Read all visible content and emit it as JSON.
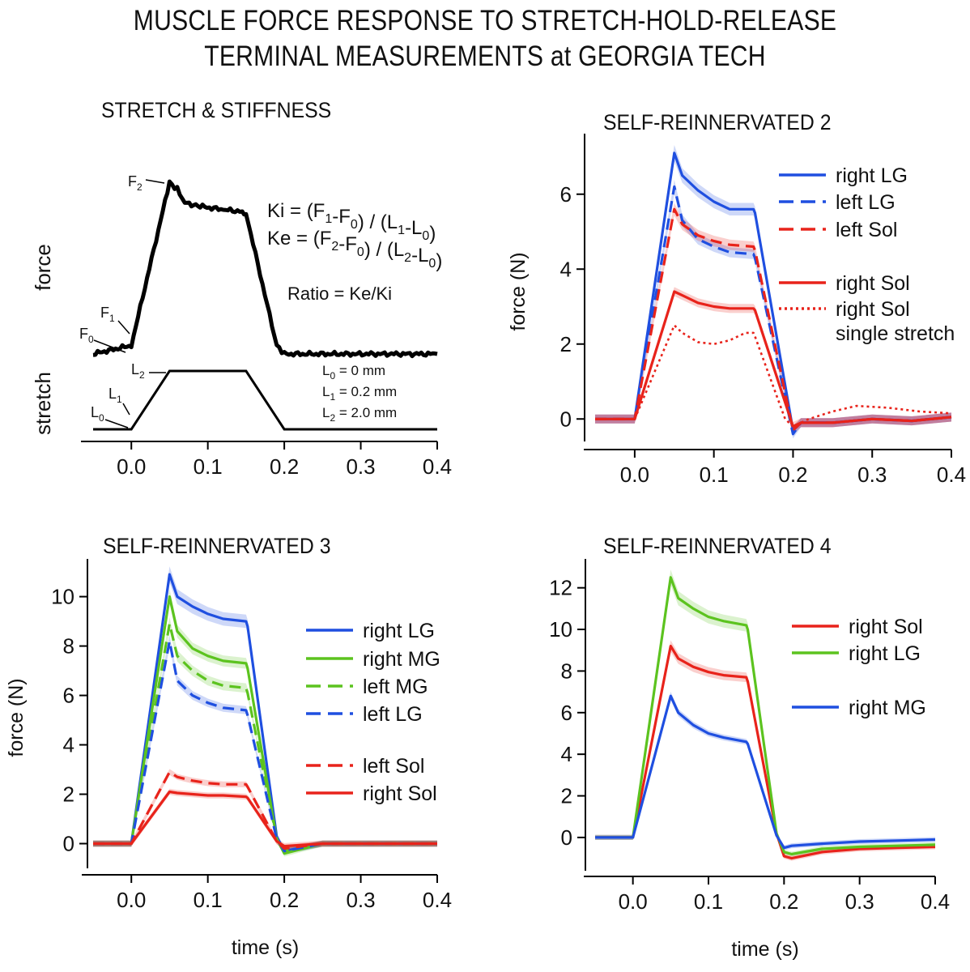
{
  "title_line1": "MUSCLE FORCE RESPONSE TO STRETCH-HOLD-RELEASE",
  "title_line2": "TERMINAL MEASUREMENTS at GEORGIA TECH",
  "colors": {
    "blue": "#1f4fe0",
    "red": "#e8231b",
    "green": "#5cc31f",
    "black": "#000000"
  },
  "chart_data": [
    {
      "type": "line",
      "title": "STRETCH & STIFFNESS",
      "xlabel": "",
      "ylabels": [
        "force",
        "stretch"
      ],
      "xlim": [
        -0.05,
        0.4
      ],
      "xticks": [
        "0.0",
        "0.1",
        "0.2",
        "0.3",
        "0.4"
      ],
      "series": [
        {
          "name": "force",
          "x": [
            -0.05,
            0.0,
            0.05,
            0.06,
            0.07,
            0.09,
            0.12,
            0.145,
            0.15,
            0.19,
            0.2,
            0.4
          ],
          "y": [
            0.0,
            0.05,
            1.0,
            0.96,
            0.88,
            0.86,
            0.84,
            0.83,
            0.82,
            0.05,
            0.0,
            0.0
          ]
        },
        {
          "name": "stretch",
          "x": [
            -0.05,
            0.0,
            0.05,
            0.15,
            0.2,
            0.4
          ],
          "y": [
            0,
            0,
            2.0,
            2.0,
            0,
            0
          ]
        }
      ],
      "annotations": {
        "point_labels": [
          "F2",
          "F1",
          "F0",
          "L2",
          "L1",
          "L0"
        ],
        "equations": [
          "Ki = (F1-F0) / (L1-L0)",
          "Ke = (F2-F0) / (L2-L0)",
          "Ratio = Ke/Ki"
        ],
        "lengths": [
          "L0 = 0 mm",
          "L1 = 0.2 mm",
          "L2 = 2.0 mm"
        ]
      }
    },
    {
      "type": "line",
      "title": "SELF-REINNERVATED 2",
      "xlabel": "",
      "ylabel": "force (N)",
      "xlim": [
        -0.05,
        0.4
      ],
      "ylim": [
        -0.6,
        7.4
      ],
      "xticks": [
        "0.0",
        "0.1",
        "0.2",
        "0.3",
        "0.4"
      ],
      "yticks": [
        "0",
        "2",
        "4",
        "6"
      ],
      "series": [
        {
          "name": "right LG",
          "color": "blue",
          "style": "solid",
          "x": [
            -0.05,
            0.0,
            0.05,
            0.06,
            0.08,
            0.1,
            0.12,
            0.15,
            0.152,
            0.2,
            0.21,
            0.25,
            0.3,
            0.35,
            0.4
          ],
          "y": [
            0.0,
            0.0,
            7.1,
            6.5,
            6.1,
            5.8,
            5.6,
            5.6,
            5.5,
            -0.3,
            -0.1,
            -0.1,
            0.0,
            -0.05,
            0.05
          ]
        },
        {
          "name": "left LG",
          "color": "blue",
          "style": "dashed",
          "x": [
            -0.05,
            0.0,
            0.05,
            0.06,
            0.08,
            0.1,
            0.12,
            0.15,
            0.152,
            0.2,
            0.21,
            0.25,
            0.3,
            0.35,
            0.4
          ],
          "y": [
            0.0,
            0.0,
            6.2,
            5.3,
            4.8,
            4.6,
            4.45,
            4.4,
            4.3,
            -0.4,
            -0.1,
            -0.1,
            0.0,
            -0.05,
            0.05
          ]
        },
        {
          "name": "left Sol",
          "color": "red",
          "style": "dashed",
          "x": [
            -0.05,
            0.0,
            0.05,
            0.06,
            0.08,
            0.1,
            0.12,
            0.15,
            0.152,
            0.2,
            0.21,
            0.25,
            0.3,
            0.35,
            0.4
          ],
          "y": [
            0.0,
            0.0,
            5.6,
            5.2,
            4.9,
            4.75,
            4.65,
            4.6,
            4.5,
            -0.3,
            -0.1,
            -0.1,
            0.0,
            -0.05,
            0.05
          ]
        },
        {
          "name": "right Sol",
          "color": "red",
          "style": "solid",
          "x": [
            -0.05,
            0.0,
            0.05,
            0.06,
            0.08,
            0.1,
            0.12,
            0.15,
            0.152,
            0.2,
            0.21,
            0.25,
            0.3,
            0.35,
            0.4
          ],
          "y": [
            0.0,
            0.0,
            3.4,
            3.3,
            3.1,
            3.0,
            2.95,
            2.95,
            2.9,
            -0.2,
            -0.1,
            -0.1,
            0.0,
            -0.05,
            0.05
          ]
        },
        {
          "name": "right Sol single stretch",
          "color": "red",
          "style": "dotted",
          "x": [
            -0.05,
            0.0,
            0.05,
            0.06,
            0.08,
            0.1,
            0.12,
            0.14,
            0.15,
            0.152,
            0.19,
            0.2,
            0.22,
            0.25,
            0.28,
            0.32,
            0.36,
            0.4
          ],
          "y": [
            0.0,
            0.0,
            2.5,
            2.3,
            2.05,
            2.0,
            2.1,
            2.3,
            2.3,
            2.2,
            0.0,
            -0.2,
            0.0,
            0.2,
            0.35,
            0.3,
            0.2,
            0.15
          ]
        }
      ]
    },
    {
      "type": "line",
      "title": "SELF-REINNERVATED 3",
      "xlabel": "time (s)",
      "ylabel": "force (N)",
      "xlim": [
        -0.05,
        0.4
      ],
      "ylim": [
        -1.0,
        11.2
      ],
      "xticks": [
        "0.0",
        "0.1",
        "0.2",
        "0.3",
        "0.4"
      ],
      "yticks": [
        "0",
        "2",
        "4",
        "6",
        "8",
        "10"
      ],
      "series": [
        {
          "name": "right LG",
          "color": "blue",
          "style": "solid",
          "x": [
            -0.05,
            0.0,
            0.05,
            0.06,
            0.08,
            0.1,
            0.12,
            0.15,
            0.152,
            0.19,
            0.2,
            0.25,
            0.3,
            0.35,
            0.4
          ],
          "y": [
            0.0,
            0.0,
            10.9,
            10.0,
            9.6,
            9.3,
            9.1,
            9.0,
            8.8,
            0.3,
            -0.3,
            0.0,
            0.0,
            0.0,
            0.0
          ]
        },
        {
          "name": "right MG",
          "color": "green",
          "style": "solid",
          "x": [
            -0.05,
            0.0,
            0.05,
            0.06,
            0.08,
            0.1,
            0.12,
            0.15,
            0.152,
            0.19,
            0.2,
            0.25,
            0.3,
            0.35,
            0.4
          ],
          "y": [
            0.0,
            0.0,
            10.0,
            8.6,
            7.9,
            7.6,
            7.4,
            7.3,
            7.1,
            0.2,
            -0.4,
            0.0,
            0.0,
            0.0,
            0.0
          ]
        },
        {
          "name": "left MG",
          "color": "green",
          "style": "dashed",
          "x": [
            -0.05,
            0.0,
            0.05,
            0.06,
            0.08,
            0.1,
            0.12,
            0.15,
            0.152,
            0.19,
            0.2,
            0.25,
            0.3,
            0.35,
            0.4
          ],
          "y": [
            0.0,
            0.0,
            8.9,
            7.6,
            7.0,
            6.6,
            6.4,
            6.3,
            6.1,
            0.2,
            -0.3,
            0.0,
            0.0,
            0.0,
            0.0
          ]
        },
        {
          "name": "left LG",
          "color": "blue",
          "style": "dashed",
          "x": [
            -0.05,
            0.0,
            0.05,
            0.06,
            0.08,
            0.1,
            0.12,
            0.15,
            0.152,
            0.19,
            0.2,
            0.25,
            0.3,
            0.35,
            0.4
          ],
          "y": [
            0.0,
            0.0,
            8.2,
            6.6,
            6.0,
            5.7,
            5.5,
            5.4,
            5.2,
            0.2,
            -0.3,
            0.0,
            0.0,
            0.0,
            0.0
          ]
        },
        {
          "name": "left Sol",
          "color": "red",
          "style": "dashed",
          "x": [
            -0.05,
            0.0,
            0.05,
            0.06,
            0.08,
            0.1,
            0.12,
            0.15,
            0.152,
            0.19,
            0.2,
            0.25,
            0.3,
            0.35,
            0.4
          ],
          "y": [
            0.0,
            0.0,
            2.9,
            2.7,
            2.55,
            2.45,
            2.4,
            2.4,
            2.3,
            0.1,
            -0.2,
            0.0,
            0.0,
            0.0,
            0.0
          ]
        },
        {
          "name": "right Sol",
          "color": "red",
          "style": "solid",
          "x": [
            -0.05,
            0.0,
            0.05,
            0.06,
            0.08,
            0.1,
            0.12,
            0.15,
            0.152,
            0.19,
            0.2,
            0.25,
            0.3,
            0.35,
            0.4
          ],
          "y": [
            0.0,
            0.0,
            2.1,
            2.05,
            2.0,
            1.95,
            1.95,
            1.9,
            1.85,
            0.1,
            -0.1,
            0.0,
            0.0,
            0.0,
            0.0
          ]
        }
      ]
    },
    {
      "type": "line",
      "title": "SELF-REINNERVATED 4",
      "xlabel": "time (s)",
      "ylabel": "",
      "xlim": [
        -0.05,
        0.4
      ],
      "ylim": [
        -1.6,
        13.0
      ],
      "xticks": [
        "0.0",
        "0.1",
        "0.2",
        "0.3",
        "0.4"
      ],
      "yticks": [
        "0",
        "2",
        "4",
        "6",
        "8",
        "10",
        "12"
      ],
      "series": [
        {
          "name": "right Sol",
          "color": "red",
          "style": "solid",
          "x": [
            -0.05,
            0.0,
            0.05,
            0.06,
            0.08,
            0.1,
            0.12,
            0.15,
            0.152,
            0.19,
            0.2,
            0.21,
            0.25,
            0.3,
            0.35,
            0.4
          ],
          "y": [
            0.0,
            0.0,
            9.2,
            8.6,
            8.2,
            7.95,
            7.8,
            7.7,
            7.5,
            0.2,
            -0.9,
            -1.0,
            -0.7,
            -0.55,
            -0.5,
            -0.45
          ]
        },
        {
          "name": "right LG",
          "color": "green",
          "style": "solid",
          "x": [
            -0.05,
            0.0,
            0.05,
            0.06,
            0.08,
            0.1,
            0.12,
            0.15,
            0.152,
            0.19,
            0.2,
            0.21,
            0.25,
            0.3,
            0.35,
            0.4
          ],
          "y": [
            0.0,
            0.0,
            12.5,
            11.5,
            11.0,
            10.6,
            10.4,
            10.2,
            10.0,
            0.2,
            -0.7,
            -0.8,
            -0.55,
            -0.45,
            -0.4,
            -0.35
          ]
        },
        {
          "name": "right MG",
          "color": "blue",
          "style": "solid",
          "x": [
            -0.05,
            0.0,
            0.05,
            0.06,
            0.08,
            0.1,
            0.12,
            0.15,
            0.152,
            0.19,
            0.2,
            0.21,
            0.25,
            0.3,
            0.35,
            0.4
          ],
          "y": [
            0.0,
            0.0,
            6.8,
            6.0,
            5.4,
            5.0,
            4.8,
            4.6,
            4.5,
            0.1,
            -0.5,
            -0.4,
            -0.3,
            -0.2,
            -0.15,
            -0.1
          ]
        }
      ]
    }
  ]
}
